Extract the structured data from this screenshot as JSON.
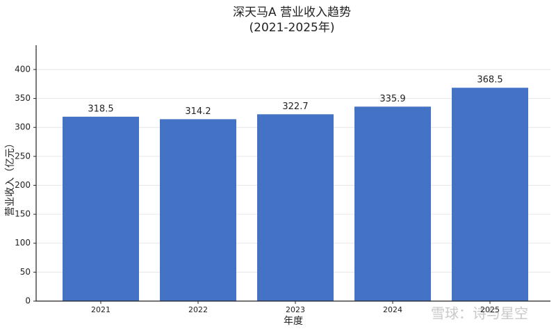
{
  "chart_data": {
    "type": "bar",
    "title": "深天马A 营业收入趋势",
    "subtitle": "(2021-2025年)",
    "x_label": "年度",
    "y_label": "营业收入（亿元）",
    "categories": [
      "2021",
      "2022",
      "2023",
      "2024",
      "2025"
    ],
    "values": [
      318.5,
      314.2,
      322.7,
      335.9,
      368.5
    ],
    "color": "#4472c4",
    "ylim": [
      0,
      442
    ],
    "yticks": [
      0,
      50,
      100,
      150,
      200,
      250,
      300,
      350,
      400
    ],
    "grid": true,
    "watermark": "雪球：诗与星空"
  }
}
